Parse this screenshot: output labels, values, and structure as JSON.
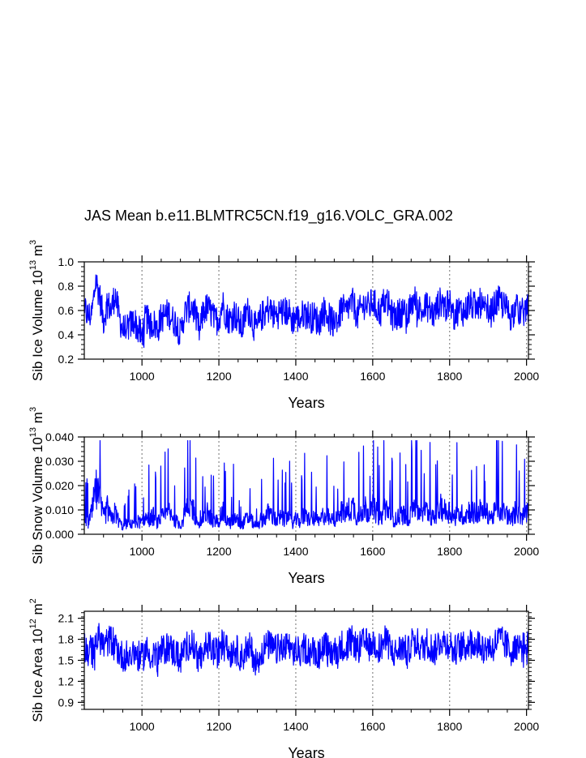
{
  "title": "JAS Mean b.e11.BLMTRC5CN.f19_g16.VOLC_GRA.002",
  "chart_data": [
    {
      "type": "line",
      "id": "ice-volume",
      "ylabel": "Sib Ice Volume 10",
      "ylabel_exp": "13",
      "ylabel_unit": " m",
      "ylabel_unit_exp": "3",
      "xlabel": "Years",
      "xlim": [
        850,
        2005
      ],
      "ylim": [
        0.2,
        1.0
      ],
      "xticks": [
        1000,
        1200,
        1400,
        1600,
        1800,
        2000
      ],
      "yticks": [
        0.2,
        0.4,
        0.6,
        0.8,
        1.0
      ],
      "ytick_labels": [
        "0.2",
        "0.4",
        "0.6",
        "0.8",
        "1.0"
      ],
      "reference_lines_x": [
        1000,
        1200,
        1400,
        1600,
        1800,
        2000
      ],
      "color": "#0000ff",
      "series": [
        {
          "name": "Sib Ice Volume",
          "x_start": 850,
          "x_step": 10,
          "values": [
            0.62,
            0.55,
            0.58,
            0.85,
            0.72,
            0.52,
            0.66,
            0.6,
            0.74,
            0.56,
            0.44,
            0.46,
            0.48,
            0.52,
            0.44,
            0.4,
            0.55,
            0.48,
            0.5,
            0.44,
            0.54,
            0.56,
            0.58,
            0.52,
            0.5,
            0.4,
            0.57,
            0.62,
            0.64,
            0.55,
            0.42,
            0.6,
            0.62,
            0.58,
            0.51,
            0.54,
            0.66,
            0.55,
            0.52,
            0.58,
            0.52,
            0.45,
            0.58,
            0.6,
            0.48,
            0.45,
            0.55,
            0.58,
            0.62,
            0.57,
            0.56,
            0.6,
            0.58,
            0.6,
            0.52,
            0.55,
            0.52,
            0.58,
            0.57,
            0.54,
            0.55,
            0.49,
            0.6,
            0.58,
            0.52,
            0.55,
            0.52,
            0.62,
            0.58,
            0.65,
            0.66,
            0.55,
            0.62,
            0.66,
            0.62,
            0.68,
            0.62,
            0.58,
            0.68,
            0.65,
            0.56,
            0.55,
            0.58,
            0.6,
            0.52,
            0.66,
            0.68,
            0.62,
            0.58,
            0.64,
            0.6,
            0.56,
            0.65,
            0.68,
            0.62,
            0.66,
            0.55,
            0.6,
            0.6,
            0.59,
            0.66,
            0.64,
            0.62,
            0.66,
            0.58,
            0.62,
            0.58,
            0.66,
            0.68,
            0.64,
            0.6,
            0.55,
            0.62,
            0.6,
            0.58,
            0.62,
            0.6
          ]
        }
      ]
    },
    {
      "type": "line",
      "id": "snow-volume",
      "ylabel": "Sib Snow Volume 10",
      "ylabel_exp": "13",
      "ylabel_unit": " m",
      "ylabel_unit_exp": "3",
      "xlabel": "Years",
      "xlim": [
        850,
        2005
      ],
      "ylim": [
        0.0,
        0.04
      ],
      "xticks": [
        1000,
        1200,
        1400,
        1600,
        1800,
        2000
      ],
      "yticks": [
        0.0,
        0.01,
        0.02,
        0.03,
        0.04
      ],
      "ytick_labels": [
        "0.000",
        "0.010",
        "0.020",
        "0.030",
        "0.040"
      ],
      "reference_lines_x": [
        1000,
        1200,
        1400,
        1600,
        1800,
        2000
      ],
      "color": "#0000ff",
      "series": [
        {
          "name": "Sib Snow Volume",
          "x_start": 850,
          "x_step": 10,
          "values": [
            0.01,
            0.006,
            0.012,
            0.024,
            0.018,
            0.009,
            0.014,
            0.008,
            0.012,
            0.007,
            0.004,
            0.006,
            0.005,
            0.008,
            0.007,
            0.006,
            0.009,
            0.008,
            0.01,
            0.006,
            0.009,
            0.01,
            0.012,
            0.008,
            0.007,
            0.005,
            0.01,
            0.014,
            0.016,
            0.009,
            0.004,
            0.008,
            0.012,
            0.008,
            0.007,
            0.008,
            0.012,
            0.008,
            0.006,
            0.009,
            0.007,
            0.005,
            0.008,
            0.009,
            0.006,
            0.004,
            0.008,
            0.009,
            0.012,
            0.01,
            0.007,
            0.009,
            0.008,
            0.01,
            0.006,
            0.008,
            0.007,
            0.01,
            0.009,
            0.008,
            0.009,
            0.006,
            0.01,
            0.011,
            0.007,
            0.009,
            0.008,
            0.013,
            0.011,
            0.014,
            0.015,
            0.009,
            0.012,
            0.015,
            0.011,
            0.014,
            0.012,
            0.008,
            0.015,
            0.013,
            0.009,
            0.008,
            0.01,
            0.011,
            0.007,
            0.014,
            0.016,
            0.012,
            0.01,
            0.013,
            0.011,
            0.008,
            0.013,
            0.015,
            0.012,
            0.013,
            0.009,
            0.011,
            0.011,
            0.01,
            0.013,
            0.012,
            0.011,
            0.013,
            0.01,
            0.012,
            0.009,
            0.013,
            0.014,
            0.012,
            0.011,
            0.008,
            0.012,
            0.011,
            0.01,
            0.011,
            0.011
          ]
        }
      ]
    },
    {
      "type": "line",
      "id": "ice-area",
      "ylabel": "Sib Ice Area 10",
      "ylabel_exp": "12",
      "ylabel_unit": " m",
      "ylabel_unit_exp": "2",
      "xlabel": "Years",
      "xlim": [
        850,
        2005
      ],
      "ylim": [
        0.8,
        2.2
      ],
      "xticks": [
        1000,
        1200,
        1400,
        1600,
        1800,
        2000
      ],
      "yticks": [
        0.9,
        1.2,
        1.5,
        1.8,
        2.1
      ],
      "ytick_labels": [
        "0.9",
        "1.2",
        "1.5",
        "1.8",
        "2.1"
      ],
      "reference_lines_x": [
        1000,
        1200,
        1400,
        1600,
        1800,
        2000
      ],
      "color": "#0000ff",
      "series": [
        {
          "name": "Sib Ice Area",
          "x_start": 850,
          "x_step": 10,
          "values": [
            1.72,
            1.6,
            1.66,
            1.78,
            1.82,
            1.7,
            1.76,
            1.8,
            1.74,
            1.62,
            1.55,
            1.58,
            1.6,
            1.62,
            1.56,
            1.52,
            1.66,
            1.58,
            1.62,
            1.54,
            1.62,
            1.66,
            1.7,
            1.62,
            1.6,
            1.5,
            1.68,
            1.72,
            1.74,
            1.64,
            1.48,
            1.66,
            1.72,
            1.68,
            1.6,
            1.62,
            1.76,
            1.64,
            1.6,
            1.68,
            1.62,
            1.52,
            1.66,
            1.7,
            1.56,
            1.45,
            1.62,
            1.68,
            1.72,
            1.66,
            1.64,
            1.7,
            1.66,
            1.7,
            1.6,
            1.64,
            1.6,
            1.68,
            1.66,
            1.62,
            1.64,
            1.56,
            1.7,
            1.68,
            1.6,
            1.64,
            1.6,
            1.72,
            1.68,
            1.76,
            1.78,
            1.64,
            1.72,
            1.76,
            1.7,
            1.76,
            1.72,
            1.66,
            1.78,
            1.74,
            1.62,
            1.6,
            1.66,
            1.7,
            1.58,
            1.76,
            1.8,
            1.72,
            1.66,
            1.76,
            1.7,
            1.62,
            1.74,
            1.8,
            1.72,
            1.76,
            1.62,
            1.68,
            1.7,
            1.68,
            1.76,
            1.74,
            1.72,
            1.76,
            1.66,
            1.72,
            1.66,
            1.76,
            1.8,
            1.74,
            1.7,
            1.62,
            1.74,
            1.7,
            1.68,
            1.72,
            1.72
          ]
        }
      ]
    }
  ]
}
